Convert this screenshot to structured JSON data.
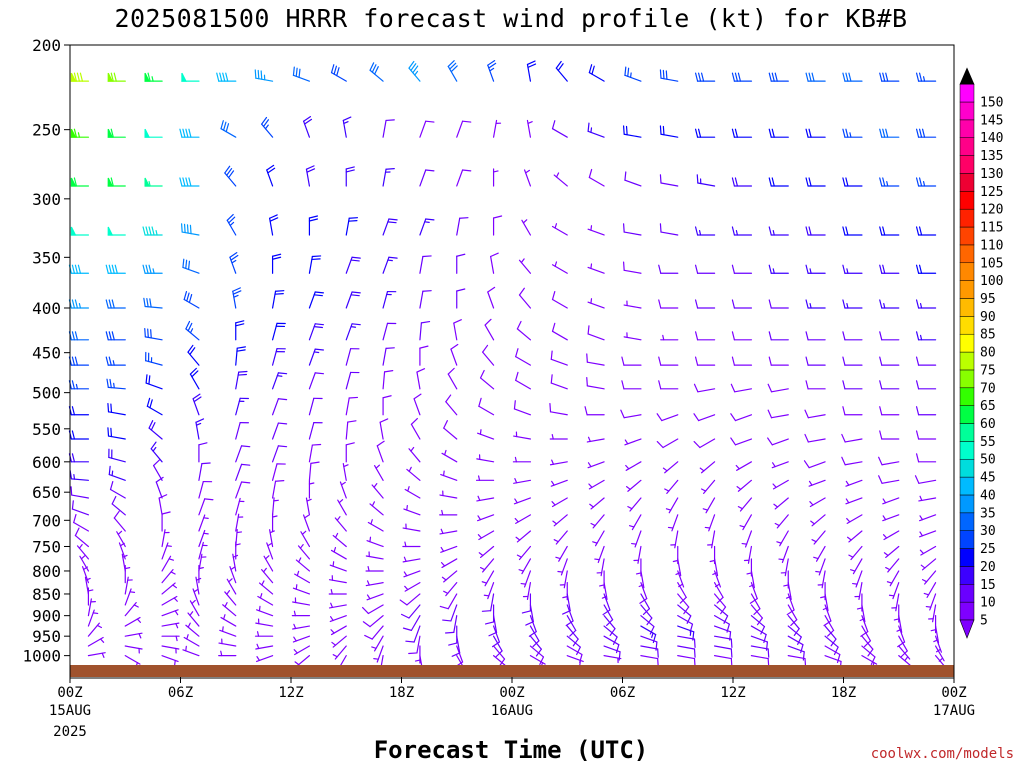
{
  "chart_data": {
    "type": "wind-barb-profile",
    "title": "2025081500 HRRR forecast wind profile (kt) for KB#B",
    "xlabel": "Forecast Time (UTC)",
    "units": "kt",
    "credit": "coolwx.com/models",
    "x_range_hours": [
      0,
      48
    ],
    "x_ticks": [
      {
        "hour": 0,
        "label": "00Z",
        "sub1": "15AUG",
        "sub2": "2025"
      },
      {
        "hour": 6,
        "label": "06Z",
        "sub1": "",
        "sub2": ""
      },
      {
        "hour": 12,
        "label": "12Z",
        "sub1": "",
        "sub2": ""
      },
      {
        "hour": 18,
        "label": "18Z",
        "sub1": "",
        "sub2": ""
      },
      {
        "hour": 24,
        "label": "00Z",
        "sub1": "16AUG",
        "sub2": ""
      },
      {
        "hour": 30,
        "label": "06Z",
        "sub1": "",
        "sub2": ""
      },
      {
        "hour": 36,
        "label": "12Z",
        "sub1": "",
        "sub2": ""
      },
      {
        "hour": 42,
        "label": "18Z",
        "sub1": "",
        "sub2": ""
      },
      {
        "hour": 48,
        "label": "00Z",
        "sub1": "17AUG",
        "sub2": ""
      }
    ],
    "y_scale": "log-pressure",
    "y_range_hpa": [
      1025,
      200
    ],
    "y_ticks": [
      "200",
      "250",
      "300",
      "350",
      "400",
      "450",
      "500",
      "550",
      "600",
      "650",
      "700",
      "750",
      "800",
      "850",
      "900",
      "950",
      "1000"
    ],
    "levels_hpa": [
      220,
      255,
      290,
      330,
      365,
      400,
      435,
      465,
      495,
      530,
      565,
      600,
      630,
      660,
      690,
      720,
      750,
      775,
      800,
      825,
      850,
      875,
      900,
      925,
      950,
      975,
      1000
    ],
    "colorbar": {
      "levels": [
        "5",
        "10",
        "15",
        "20",
        "25",
        "30",
        "35",
        "40",
        "45",
        "50",
        "55",
        "60",
        "65",
        "70",
        "75",
        "80",
        "85",
        "90",
        "95",
        "100",
        "105",
        "110",
        "115",
        "120",
        "125",
        "130",
        "135",
        "140",
        "145",
        "150"
      ],
      "colors": [
        "#7f00ff",
        "#6a00ff",
        "#3c00ff",
        "#0000ff",
        "#0044ff",
        "#0066ff",
        "#0099ff",
        "#00bbff",
        "#00dddd",
        "#00ffcc",
        "#00ff99",
        "#00ff44",
        "#33ff00",
        "#88ff00",
        "#bbff00",
        "#ffff00",
        "#ffdd00",
        "#ffbb00",
        "#ff9900",
        "#ff8800",
        "#ff6600",
        "#ff4400",
        "#ff2200",
        "#ff0000",
        "#ee0033",
        "#ff0066",
        "#ff0088",
        "#ff00aa",
        "#ff00cc",
        "#ff00ff"
      ],
      "under_color": "#7f00ff",
      "over_color": "#000000"
    },
    "ground_color": "#a0522d",
    "wind_speed_kt": [
      [
        78,
        70,
        64,
        52,
        40,
        35,
        30,
        28,
        30,
        35,
        30,
        25,
        22,
        22,
        22,
        25,
        28,
        28,
        28,
        28,
        30,
        30,
        28,
        25
      ],
      [
        65,
        60,
        52,
        42,
        30,
        25,
        18,
        15,
        10,
        8,
        8,
        5,
        5,
        12,
        15,
        20,
        20,
        22,
        20,
        20,
        22,
        25,
        30,
        28
      ],
      [
        62,
        60,
        55,
        42,
        28,
        20,
        18,
        18,
        15,
        12,
        8,
        5,
        5,
        5,
        8,
        10,
        12,
        15,
        18,
        20,
        20,
        22,
        25,
        25
      ],
      [
        50,
        50,
        45,
        38,
        25,
        22,
        22,
        20,
        18,
        15,
        10,
        8,
        5,
        5,
        5,
        10,
        12,
        15,
        15,
        15,
        18,
        20,
        22,
        22
      ],
      [
        40,
        40,
        35,
        32,
        25,
        22,
        20,
        18,
        15,
        12,
        10,
        8,
        5,
        5,
        5,
        8,
        10,
        12,
        12,
        15,
        15,
        15,
        18,
        20
      ],
      [
        35,
        32,
        30,
        28,
        25,
        22,
        20,
        18,
        15,
        12,
        10,
        8,
        8,
        8,
        5,
        5,
        8,
        10,
        12,
        12,
        15,
        15,
        15,
        15
      ],
      [
        30,
        28,
        28,
        25,
        22,
        20,
        18,
        15,
        12,
        10,
        8,
        8,
        8,
        8,
        8,
        5,
        5,
        8,
        8,
        10,
        12,
        12,
        12,
        15
      ],
      [
        28,
        25,
        25,
        22,
        20,
        18,
        15,
        12,
        10,
        8,
        8,
        8,
        8,
        8,
        8,
        8,
        8,
        8,
        8,
        8,
        10,
        10,
        12,
        12
      ],
      [
        25,
        25,
        22,
        20,
        18,
        15,
        12,
        10,
        8,
        8,
        8,
        8,
        8,
        8,
        8,
        8,
        8,
        8,
        8,
        8,
        8,
        10,
        10,
        10
      ],
      [
        22,
        22,
        20,
        18,
        15,
        12,
        10,
        8,
        8,
        8,
        8,
        8,
        8,
        8,
        8,
        8,
        8,
        8,
        8,
        8,
        8,
        8,
        8,
        10
      ],
      [
        20,
        20,
        18,
        15,
        12,
        10,
        10,
        8,
        8,
        8,
        8,
        5,
        5,
        5,
        5,
        5,
        8,
        8,
        8,
        8,
        8,
        8,
        8,
        8
      ],
      [
        18,
        18,
        15,
        12,
        10,
        10,
        8,
        8,
        8,
        5,
        5,
        5,
        5,
        5,
        5,
        5,
        5,
        5,
        5,
        5,
        8,
        8,
        8,
        8
      ],
      [
        15,
        15,
        12,
        10,
        10,
        8,
        8,
        5,
        5,
        5,
        5,
        5,
        5,
        5,
        5,
        5,
        5,
        5,
        5,
        5,
        5,
        5,
        8,
        8
      ],
      [
        12,
        12,
        10,
        8,
        8,
        8,
        5,
        5,
        5,
        5,
        5,
        5,
        5,
        5,
        5,
        5,
        5,
        5,
        5,
        5,
        5,
        5,
        5,
        5
      ],
      [
        10,
        10,
        8,
        8,
        5,
        5,
        5,
        5,
        5,
        5,
        5,
        5,
        5,
        5,
        5,
        5,
        5,
        5,
        5,
        5,
        5,
        5,
        5,
        5
      ],
      [
        8,
        8,
        8,
        5,
        5,
        5,
        5,
        5,
        5,
        5,
        5,
        5,
        5,
        5,
        5,
        5,
        5,
        5,
        5,
        5,
        5,
        5,
        5,
        5
      ],
      [
        8,
        5,
        5,
        5,
        5,
        5,
        5,
        5,
        5,
        5,
        5,
        5,
        5,
        5,
        5,
        5,
        5,
        5,
        5,
        5,
        5,
        5,
        5,
        5
      ],
      [
        5,
        5,
        5,
        5,
        5,
        5,
        5,
        5,
        5,
        5,
        5,
        5,
        5,
        5,
        5,
        5,
        5,
        5,
        5,
        5,
        5,
        5,
        5,
        5
      ],
      [
        5,
        5,
        5,
        5,
        5,
        5,
        5,
        5,
        5,
        5,
        5,
        5,
        5,
        5,
        5,
        5,
        5,
        5,
        5,
        5,
        5,
        5,
        5,
        5
      ],
      [
        5,
        5,
        5,
        5,
        5,
        5,
        5,
        5,
        5,
        5,
        5,
        5,
        5,
        5,
        5,
        8,
        8,
        8,
        8,
        5,
        5,
        5,
        5,
        5
      ],
      [
        5,
        5,
        5,
        5,
        5,
        5,
        5,
        5,
        5,
        8,
        8,
        10,
        10,
        10,
        10,
        10,
        8,
        8,
        8,
        8,
        5,
        5,
        5,
        5
      ],
      [
        5,
        5,
        5,
        5,
        5,
        5,
        5,
        5,
        8,
        10,
        12,
        12,
        12,
        12,
        12,
        12,
        10,
        10,
        8,
        8,
        8,
        5,
        5,
        5
      ],
      [
        5,
        5,
        5,
        5,
        5,
        5,
        5,
        5,
        8,
        10,
        12,
        12,
        12,
        12,
        12,
        12,
        12,
        12,
        10,
        10,
        8,
        8,
        5,
        5
      ],
      [
        5,
        5,
        5,
        5,
        5,
        5,
        5,
        5,
        8,
        10,
        12,
        12,
        12,
        12,
        12,
        15,
        15,
        12,
        12,
        10,
        10,
        8,
        8,
        5
      ],
      [
        5,
        5,
        5,
        5,
        5,
        5,
        5,
        5,
        5,
        8,
        10,
        10,
        10,
        10,
        12,
        12,
        12,
        12,
        12,
        10,
        10,
        8,
        8,
        5
      ],
      [
        5,
        5,
        5,
        5,
        5,
        5,
        5,
        5,
        5,
        5,
        8,
        8,
        8,
        8,
        10,
        10,
        10,
        10,
        10,
        10,
        8,
        8,
        5,
        5
      ],
      [
        5,
        5,
        5,
        5,
        5,
        5,
        5,
        5,
        5,
        5,
        5,
        5,
        5,
        5,
        5,
        8,
        8,
        8,
        8,
        8,
        8,
        5,
        5,
        5
      ]
    ],
    "wind_dir_deg": [
      [
        270,
        270,
        270,
        270,
        270,
        280,
        290,
        300,
        310,
        320,
        330,
        340,
        350,
        320,
        300,
        290,
        280,
        270,
        270,
        270,
        270,
        270,
        270,
        270
      ],
      [
        270,
        270,
        270,
        270,
        300,
        320,
        340,
        350,
        10,
        20,
        20,
        10,
        350,
        300,
        290,
        280,
        280,
        270,
        270,
        270,
        270,
        270,
        270,
        270
      ],
      [
        270,
        270,
        270,
        270,
        320,
        340,
        350,
        0,
        10,
        20,
        20,
        0,
        340,
        310,
        300,
        290,
        280,
        280,
        270,
        270,
        270,
        270,
        270,
        270
      ],
      [
        270,
        270,
        270,
        280,
        330,
        350,
        0,
        10,
        20,
        20,
        10,
        0,
        330,
        300,
        290,
        280,
        280,
        270,
        270,
        270,
        270,
        270,
        270,
        270
      ],
      [
        270,
        270,
        270,
        290,
        340,
        0,
        10,
        20,
        20,
        10,
        0,
        350,
        320,
        300,
        290,
        280,
        270,
        270,
        270,
        270,
        270,
        270,
        270,
        270
      ],
      [
        270,
        270,
        275,
        300,
        350,
        10,
        20,
        20,
        15,
        10,
        0,
        340,
        320,
        300,
        290,
        280,
        270,
        270,
        270,
        270,
        270,
        270,
        270,
        270
      ],
      [
        270,
        270,
        280,
        310,
        0,
        15,
        20,
        20,
        15,
        5,
        350,
        330,
        310,
        300,
        290,
        280,
        270,
        270,
        270,
        270,
        270,
        270,
        270,
        270
      ],
      [
        270,
        270,
        285,
        320,
        5,
        15,
        20,
        15,
        10,
        0,
        340,
        320,
        300,
        290,
        280,
        270,
        270,
        270,
        270,
        270,
        270,
        270,
        270,
        270
      ],
      [
        270,
        275,
        290,
        330,
        10,
        20,
        20,
        15,
        5,
        350,
        330,
        310,
        300,
        290,
        280,
        270,
        270,
        260,
        260,
        260,
        270,
        270,
        270,
        270
      ],
      [
        270,
        280,
        300,
        340,
        15,
        20,
        15,
        10,
        0,
        340,
        320,
        300,
        290,
        280,
        270,
        260,
        250,
        250,
        250,
        260,
        260,
        270,
        270,
        270
      ],
      [
        270,
        280,
        310,
        350,
        15,
        20,
        15,
        5,
        350,
        330,
        310,
        290,
        280,
        270,
        260,
        250,
        240,
        240,
        250,
        250,
        260,
        260,
        270,
        270
      ],
      [
        270,
        285,
        320,
        0,
        20,
        20,
        10,
        0,
        340,
        320,
        300,
        280,
        270,
        260,
        250,
        240,
        230,
        230,
        240,
        250,
        250,
        260,
        260,
        270
      ],
      [
        275,
        290,
        330,
        10,
        20,
        15,
        5,
        350,
        330,
        310,
        290,
        270,
        260,
        250,
        240,
        230,
        220,
        220,
        230,
        240,
        250,
        250,
        260,
        260
      ],
      [
        280,
        300,
        340,
        15,
        20,
        10,
        0,
        340,
        320,
        300,
        280,
        260,
        250,
        240,
        230,
        220,
        210,
        210,
        220,
        230,
        240,
        250,
        250,
        260
      ],
      [
        290,
        310,
        350,
        20,
        15,
        5,
        350,
        330,
        310,
        290,
        270,
        250,
        240,
        230,
        220,
        210,
        200,
        200,
        210,
        220,
        230,
        240,
        250,
        250
      ],
      [
        300,
        320,
        0,
        20,
        10,
        0,
        340,
        320,
        300,
        280,
        260,
        240,
        230,
        220,
        210,
        200,
        190,
        190,
        200,
        210,
        220,
        230,
        240,
        250
      ],
      [
        310,
        330,
        10,
        20,
        5,
        350,
        330,
        310,
        290,
        270,
        250,
        230,
        220,
        210,
        200,
        190,
        180,
        180,
        190,
        200,
        210,
        220,
        230,
        240
      ],
      [
        320,
        340,
        20,
        15,
        0,
        340,
        320,
        300,
        280,
        260,
        240,
        220,
        210,
        200,
        190,
        180,
        170,
        170,
        180,
        190,
        200,
        210,
        220,
        230
      ],
      [
        330,
        350,
        30,
        10,
        350,
        330,
        310,
        290,
        270,
        250,
        230,
        210,
        200,
        190,
        180,
        170,
        160,
        160,
        170,
        180,
        190,
        200,
        210,
        220
      ],
      [
        340,
        0,
        40,
        0,
        340,
        320,
        300,
        280,
        260,
        240,
        220,
        200,
        190,
        180,
        170,
        160,
        150,
        150,
        160,
        170,
        180,
        190,
        200,
        210
      ],
      [
        350,
        10,
        50,
        350,
        330,
        310,
        290,
        270,
        250,
        230,
        210,
        190,
        180,
        170,
        160,
        150,
        140,
        140,
        150,
        160,
        170,
        180,
        190,
        200
      ],
      [
        0,
        20,
        60,
        340,
        320,
        300,
        280,
        260,
        240,
        220,
        200,
        180,
        170,
        160,
        150,
        140,
        130,
        130,
        140,
        150,
        160,
        170,
        180,
        190
      ],
      [
        10,
        40,
        70,
        330,
        310,
        290,
        270,
        250,
        230,
        210,
        190,
        170,
        160,
        150,
        140,
        130,
        120,
        120,
        130,
        140,
        150,
        160,
        170,
        180
      ],
      [
        20,
        60,
        80,
        320,
        300,
        280,
        260,
        240,
        220,
        200,
        180,
        160,
        150,
        140,
        130,
        120,
        110,
        110,
        120,
        130,
        140,
        150,
        160,
        170
      ],
      [
        40,
        80,
        90,
        310,
        290,
        270,
        250,
        230,
        210,
        190,
        170,
        150,
        140,
        130,
        120,
        110,
        100,
        100,
        110,
        120,
        130,
        140,
        150,
        160
      ],
      [
        60,
        100,
        100,
        300,
        280,
        260,
        240,
        220,
        200,
        180,
        160,
        140,
        130,
        120,
        110,
        100,
        100,
        100,
        100,
        110,
        120,
        130,
        140,
        150
      ],
      [
        80,
        120,
        110,
        290,
        270,
        250,
        230,
        210,
        190,
        170,
        150,
        130,
        120,
        110,
        100,
        100,
        100,
        100,
        100,
        100,
        110,
        120,
        130,
        140
      ]
    ]
  }
}
